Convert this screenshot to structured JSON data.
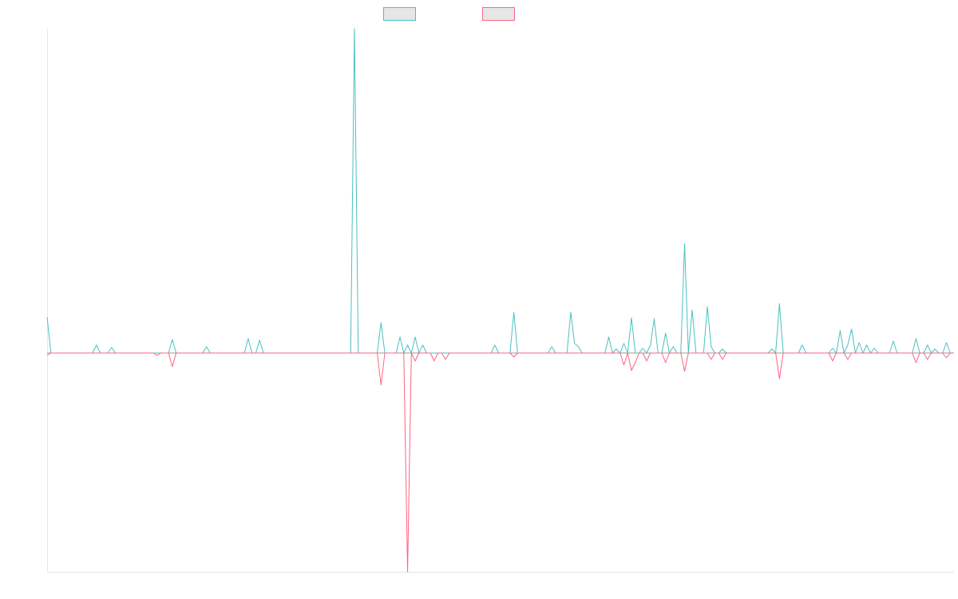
{
  "chart_data": {
    "type": "line",
    "categories": [
      null,
      null,
      null,
      null,
      null,
      null,
      null,
      null,
      null,
      null,
      null,
      null,
      null,
      null,
      null,
      null,
      null,
      null,
      null,
      null,
      null,
      null,
      null,
      null,
      null,
      null,
      null,
      null,
      null,
      null,
      null,
      null,
      null,
      null,
      null,
      null,
      null,
      null,
      null,
      null,
      null,
      null,
      null,
      null,
      null,
      null,
      null,
      null,
      null,
      null,
      null,
      null,
      null,
      null,
      null,
      null,
      null,
      null,
      null,
      null,
      null,
      null,
      null,
      null,
      null,
      null,
      null,
      null,
      null,
      null,
      null,
      null,
      null,
      null,
      null,
      null,
      null,
      null,
      null,
      null,
      null,
      null,
      null,
      null,
      null,
      null,
      null,
      null,
      null,
      null,
      null,
      null,
      null,
      null,
      null,
      null,
      null,
      null,
      null,
      null,
      null,
      null,
      null,
      null,
      null,
      null,
      null,
      null,
      null,
      null,
      null,
      null,
      null,
      null,
      null,
      null,
      null,
      null,
      null,
      null,
      null,
      null,
      null,
      null,
      null,
      null,
      null,
      null,
      null,
      null,
      null,
      null,
      null,
      null,
      null,
      null,
      null,
      null,
      null,
      null,
      null,
      null,
      null,
      null,
      null,
      null,
      null,
      null,
      null,
      null,
      null,
      null,
      null,
      null,
      null,
      null,
      null,
      null,
      null,
      null,
      null,
      null,
      null,
      null,
      null,
      null,
      null,
      null,
      null,
      null,
      null,
      null,
      null,
      null,
      null,
      null,
      null,
      null,
      null,
      null,
      null,
      null,
      null,
      null,
      null,
      null,
      null,
      null,
      null,
      null,
      null,
      null,
      null,
      null,
      null,
      null,
      null,
      null,
      null,
      null,
      null,
      null,
      null,
      null,
      null,
      null,
      null,
      null,
      null,
      null,
      null,
      null,
      null,
      null,
      null,
      null,
      null,
      null,
      null,
      null,
      null,
      null,
      null,
      null,
      null,
      null,
      null,
      null,
      null,
      null,
      null,
      null,
      null,
      null,
      null,
      null,
      null,
      null,
      null,
      null
    ],
    "ylim": [
      -274,
      406
    ],
    "series": [
      {
        "color": "#4bc0c0",
        "values": [
          45,
          0,
          0,
          0,
          0,
          0,
          0,
          0,
          0,
          0,
          0,
          0,
          0,
          10,
          0,
          0,
          0,
          7,
          0,
          0,
          0,
          0,
          0,
          0,
          0,
          0,
          0,
          0,
          0,
          0,
          0,
          0,
          0,
          17,
          0,
          0,
          0,
          0,
          0,
          0,
          0,
          0,
          8,
          0,
          0,
          0,
          0,
          0,
          0,
          0,
          0,
          0,
          0,
          18,
          0,
          0,
          16,
          0,
          0,
          0,
          0,
          0,
          0,
          0,
          0,
          0,
          0,
          0,
          0,
          0,
          0,
          0,
          0,
          0,
          0,
          0,
          0,
          0,
          0,
          0,
          0,
          406,
          0,
          0,
          0,
          0,
          0,
          0,
          38,
          0,
          0,
          0,
          0,
          20,
          0,
          10,
          0,
          20,
          0,
          10,
          0,
          0,
          0,
          0,
          0,
          0,
          0,
          0,
          0,
          0,
          0,
          0,
          0,
          0,
          0,
          0,
          0,
          0,
          10,
          0,
          0,
          0,
          0,
          51,
          0,
          0,
          0,
          0,
          0,
          0,
          0,
          0,
          0,
          8,
          0,
          0,
          0,
          0,
          51,
          12,
          8,
          0,
          0,
          0,
          0,
          0,
          0,
          0,
          20,
          0,
          5,
          0,
          12,
          0,
          44,
          0,
          0,
          6,
          0,
          10,
          43,
          0,
          0,
          25,
          0,
          8,
          0,
          0,
          137,
          0,
          54,
          0,
          0,
          0,
          58,
          8,
          0,
          0,
          5,
          0,
          0,
          0,
          0,
          0,
          0,
          0,
          0,
          0,
          0,
          0,
          0,
          5,
          0,
          62,
          0,
          0,
          0,
          0,
          0,
          10,
          0,
          0,
          0,
          0,
          0,
          0,
          0,
          6,
          0,
          28,
          0,
          10,
          30,
          0,
          13,
          0,
          10,
          0,
          6,
          0,
          0,
          0,
          0,
          15,
          0,
          0,
          0,
          0,
          0,
          18,
          0,
          0,
          10,
          0,
          5,
          0,
          0,
          13,
          0,
          0
        ]
      },
      {
        "color": "#ff6384",
        "values": [
          -3,
          0,
          0,
          0,
          0,
          0,
          0,
          0,
          0,
          0,
          0,
          0,
          0,
          0,
          0,
          0,
          0,
          0,
          0,
          0,
          0,
          0,
          0,
          0,
          0,
          0,
          0,
          0,
          0,
          -3,
          0,
          0,
          0,
          -17,
          0,
          0,
          0,
          0,
          0,
          0,
          0,
          0,
          0,
          0,
          0,
          0,
          0,
          0,
          0,
          0,
          0,
          0,
          0,
          0,
          0,
          0,
          0,
          0,
          0,
          0,
          0,
          0,
          0,
          0,
          0,
          0,
          0,
          0,
          0,
          0,
          0,
          0,
          0,
          0,
          0,
          0,
          0,
          0,
          0,
          0,
          0,
          0,
          0,
          0,
          0,
          0,
          0,
          0,
          -40,
          0,
          0,
          0,
          0,
          0,
          0,
          -274,
          0,
          -10,
          0,
          0,
          0,
          0,
          -10,
          0,
          0,
          -8,
          0,
          0,
          0,
          0,
          0,
          0,
          0,
          0,
          0,
          0,
          0,
          0,
          0,
          0,
          0,
          0,
          0,
          -5,
          0,
          0,
          0,
          0,
          0,
          0,
          0,
          0,
          0,
          0,
          0,
          0,
          0,
          0,
          0,
          0,
          0,
          0,
          0,
          0,
          0,
          0,
          0,
          0,
          0,
          0,
          0,
          0,
          -15,
          0,
          -22,
          -12,
          0,
          0,
          -10,
          0,
          0,
          0,
          0,
          -12,
          0,
          0,
          0,
          0,
          -23,
          0,
          0,
          0,
          0,
          0,
          0,
          -8,
          0,
          0,
          -8,
          0,
          0,
          0,
          0,
          0,
          0,
          0,
          0,
          0,
          0,
          0,
          0,
          0,
          0,
          -32,
          0,
          0,
          0,
          0,
          0,
          0,
          0,
          0,
          0,
          0,
          0,
          0,
          0,
          -10,
          0,
          0,
          0,
          -8,
          0,
          0,
          0,
          0,
          0,
          0,
          0,
          0,
          0,
          0,
          0,
          0,
          0,
          0,
          0,
          0,
          0,
          -12,
          0,
          0,
          -8,
          0,
          0,
          0,
          0,
          -6,
          0,
          0
        ]
      }
    ]
  }
}
